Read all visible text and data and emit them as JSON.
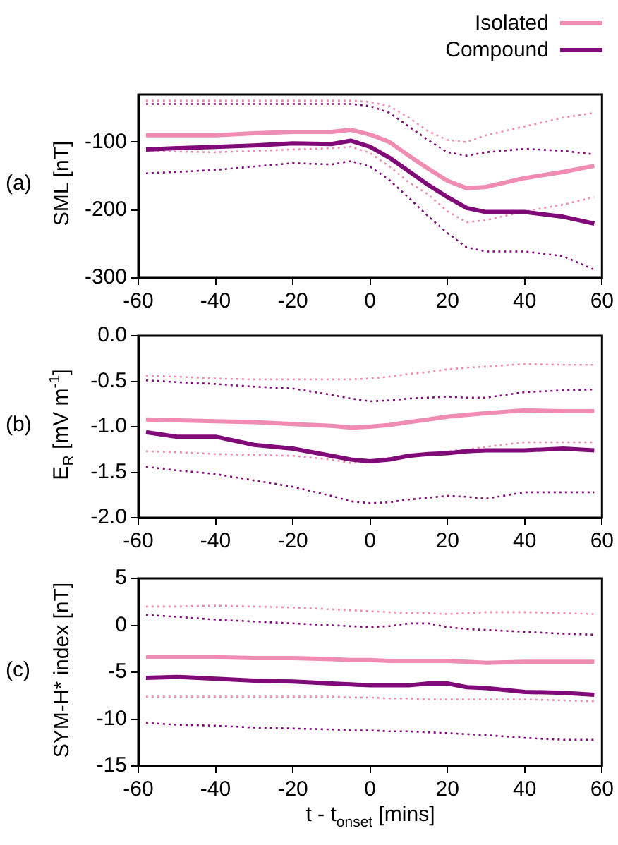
{
  "chart_data": [
    {
      "type": "line",
      "ylabel": "SML [nT]",
      "annotations": [
        "(a)"
      ],
      "legend": "top right",
      "marker": "none",
      "xlim": [
        -60,
        60
      ],
      "xticks": [
        -60,
        -40,
        -20,
        0,
        20,
        40,
        60
      ],
      "ylim": [
        -300,
        -30
      ],
      "yticks": [
        -300,
        -200,
        -100
      ],
      "x": [
        -58,
        -50,
        -40,
        -30,
        -20,
        -10,
        -5,
        0,
        5,
        10,
        15,
        20,
        25,
        30,
        40,
        50,
        58
      ],
      "series": [
        {
          "name": "Isolated",
          "color": "#f08cb4",
          "line_style": "solid",
          "values": [
            -90,
            -90,
            -90,
            -87,
            -85,
            -85,
            -82,
            -89,
            -100,
            -120,
            -139,
            -157,
            -168,
            -166,
            -153,
            -144,
            -135
          ]
        },
        {
          "name": "Compound",
          "color": "#800a78",
          "line_style": "solid",
          "values": [
            -111,
            -109,
            -107,
            -105,
            -102,
            -103,
            -98,
            -107,
            -123,
            -143,
            -163,
            -181,
            -197,
            -203,
            -203,
            -210,
            -220
          ]
        },
        {
          "color": "#f08cb4",
          "line_style": "dotted",
          "values": [
            -113,
            -114,
            -115,
            -113,
            -111,
            -109,
            -107,
            -116,
            -136,
            -159,
            -177,
            -202,
            -218,
            -215,
            -202,
            -192,
            -181
          ]
        },
        {
          "color": "#f08cb4",
          "line_style": "dotted",
          "values": [
            -39,
            -39,
            -39,
            -39,
            -39,
            -39,
            -39,
            -41,
            -47,
            -64,
            -84,
            -97,
            -100,
            -90,
            -77,
            -64,
            -57
          ]
        },
        {
          "color": "#800a78",
          "line_style": "dotted",
          "values": [
            -146,
            -144,
            -141,
            -136,
            -131,
            -133,
            -128,
            -136,
            -156,
            -182,
            -209,
            -234,
            -255,
            -261,
            -261,
            -268,
            -288
          ]
        },
        {
          "color": "#800a78",
          "line_style": "dotted",
          "values": [
            -44,
            -44,
            -44,
            -44,
            -44,
            -44,
            -44,
            -47,
            -57,
            -77,
            -97,
            -115,
            -120,
            -115,
            -110,
            -113,
            -118
          ]
        }
      ]
    },
    {
      "type": "line",
      "ylabel": "E$_{R}$ [mV m$^{-1}$]",
      "annotations": [
        "(b)"
      ],
      "marker": "none",
      "xlim": [
        -60,
        60
      ],
      "xticks": [
        -60,
        -40,
        -20,
        0,
        20,
        40,
        60
      ],
      "ylim": [
        -2,
        0
      ],
      "yticks": [
        {
          "value": -2,
          "label": "-2.0"
        },
        -1.5,
        {
          "value": -1,
          "label": "-1.0"
        },
        -0.5,
        {
          "value": 0,
          "label": "0.0"
        }
      ],
      "x": [
        -58,
        -50,
        -40,
        -30,
        -20,
        -10,
        -5,
        0,
        5,
        10,
        15,
        20,
        25,
        30,
        40,
        50,
        58
      ],
      "series": [
        {
          "color": "#f08cb4",
          "line_style": "solid",
          "values": [
            -0.92,
            -0.93,
            -0.94,
            -0.95,
            -0.97,
            -0.99,
            -1.01,
            -1.0,
            -0.98,
            -0.95,
            -0.92,
            -0.89,
            -0.87,
            -0.85,
            -0.82,
            -0.83,
            -0.83
          ]
        },
        {
          "color": "#800a78",
          "line_style": "solid",
          "values": [
            -1.06,
            -1.11,
            -1.11,
            -1.2,
            -1.24,
            -1.32,
            -1.36,
            -1.38,
            -1.36,
            -1.32,
            -1.3,
            -1.29,
            -1.27,
            -1.26,
            -1.26,
            -1.24,
            -1.26
          ]
        },
        {
          "color": "#f08cb4",
          "line_style": "dotted",
          "values": [
            -1.27,
            -1.28,
            -1.3,
            -1.31,
            -1.32,
            -1.36,
            -1.4,
            -1.37,
            -1.34,
            -1.32,
            -1.3,
            -1.27,
            -1.25,
            -1.22,
            -1.17,
            -1.17,
            -1.17
          ]
        },
        {
          "color": "#f08cb4",
          "line_style": "dotted",
          "values": [
            -0.44,
            -0.45,
            -0.47,
            -0.48,
            -0.48,
            -0.48,
            -0.48,
            -0.47,
            -0.45,
            -0.42,
            -0.4,
            -0.37,
            -0.35,
            -0.34,
            -0.31,
            -0.32,
            -0.32
          ]
        },
        {
          "color": "#800a78",
          "line_style": "dotted",
          "values": [
            -1.44,
            -1.48,
            -1.52,
            -1.59,
            -1.66,
            -1.76,
            -1.82,
            -1.84,
            -1.83,
            -1.8,
            -1.78,
            -1.76,
            -1.77,
            -1.79,
            -1.72,
            -1.72,
            -1.72
          ]
        },
        {
          "color": "#800a78",
          "line_style": "dotted",
          "values": [
            -0.49,
            -0.51,
            -0.53,
            -0.56,
            -0.58,
            -0.65,
            -0.69,
            -0.72,
            -0.71,
            -0.69,
            -0.68,
            -0.67,
            -0.68,
            -0.68,
            -0.62,
            -0.6,
            -0.59
          ]
        }
      ]
    },
    {
      "type": "line",
      "ylabel": "SYM-H* index [nT]",
      "xlabel": "t - t$_{onset}$ [mins]",
      "annotations": [
        "(c)"
      ],
      "marker": "none",
      "xlim": [
        -60,
        60
      ],
      "xticks": [
        -60,
        -40,
        -20,
        0,
        20,
        40,
        60
      ],
      "ylim": [
        -15,
        5
      ],
      "yticks": [
        -15,
        -10,
        -5,
        0,
        5
      ],
      "x": [
        -58,
        -50,
        -40,
        -30,
        -20,
        -10,
        -5,
        0,
        5,
        10,
        15,
        20,
        25,
        30,
        40,
        50,
        58
      ],
      "series": [
        {
          "color": "#f08cb4",
          "line_style": "solid",
          "values": [
            -3.4,
            -3.4,
            -3.4,
            -3.5,
            -3.5,
            -3.6,
            -3.7,
            -3.7,
            -3.8,
            -3.8,
            -3.8,
            -3.8,
            -3.9,
            -4.0,
            -3.9,
            -3.9,
            -3.9
          ]
        },
        {
          "color": "#800a78",
          "line_style": "solid",
          "values": [
            -5.6,
            -5.5,
            -5.7,
            -5.9,
            -6.0,
            -6.2,
            -6.3,
            -6.4,
            -6.4,
            -6.4,
            -6.2,
            -6.2,
            -6.6,
            -6.7,
            -7.1,
            -7.2,
            -7.4
          ]
        },
        {
          "color": "#f08cb4",
          "line_style": "dotted",
          "values": [
            -7.6,
            -7.6,
            -7.6,
            -7.6,
            -7.6,
            -7.6,
            -7.7,
            -7.7,
            -7.8,
            -7.8,
            -7.9,
            -7.9,
            -7.9,
            -7.9,
            -7.9,
            -8.0,
            -8.1
          ]
        },
        {
          "color": "#f08cb4",
          "line_style": "dotted",
          "values": [
            2.0,
            2.0,
            2.1,
            2.0,
            1.9,
            1.7,
            1.6,
            1.5,
            1.4,
            1.3,
            1.3,
            1.2,
            1.3,
            1.4,
            1.4,
            1.3,
            1.2
          ]
        },
        {
          "color": "#800a78",
          "line_style": "dotted",
          "values": [
            -10.4,
            -10.6,
            -10.7,
            -10.9,
            -11.0,
            -11.1,
            -11.2,
            -11.2,
            -11.3,
            -11.3,
            -11.4,
            -11.5,
            -11.6,
            -11.7,
            -12.0,
            -12.2,
            -12.2
          ]
        },
        {
          "color": "#800a78",
          "line_style": "dotted",
          "values": [
            1.1,
            0.9,
            0.6,
            0.4,
            0.2,
            0.0,
            -0.1,
            -0.2,
            -0.1,
            0.2,
            0.2,
            -0.2,
            -0.4,
            -0.5,
            -0.7,
            -0.9,
            -1.0
          ]
        }
      ]
    }
  ]
}
